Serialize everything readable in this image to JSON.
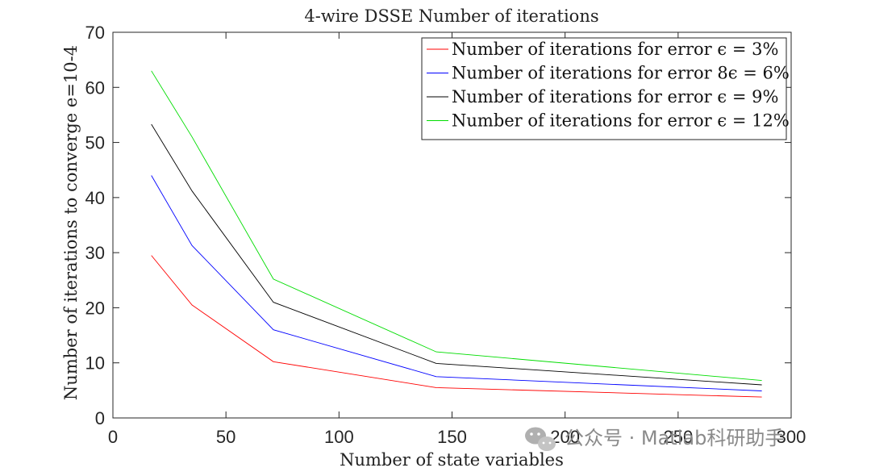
{
  "chart_data": {
    "type": "line",
    "title": "4-wire DSSE Number of iterations",
    "xlabel": "Number of state variables",
    "ylabel": "Number of iterations to converge e=10-4",
    "xlim": [
      0,
      300
    ],
    "ylim": [
      0,
      70
    ],
    "xticks": [
      0,
      50,
      100,
      150,
      200,
      250,
      300
    ],
    "yticks": [
      0,
      10,
      20,
      30,
      40,
      50,
      60,
      70
    ],
    "grid": false,
    "legend_position": "top-right",
    "x": [
      17,
      35,
      71,
      143,
      287
    ],
    "series": [
      {
        "name": "Number of iterations for error ϵ = 3%",
        "color": "#ff0000",
        "values": [
          29.5,
          20.5,
          10.2,
          5.5,
          3.8
        ]
      },
      {
        "name": "Number of iterations for error 8ϵ = 6%",
        "color": "#0000ff",
        "values": [
          44,
          31.3,
          16,
          7.5,
          4.9
        ]
      },
      {
        "name": "Number of iterations for error ϵ = 9%",
        "color": "#000000",
        "values": [
          53.3,
          41.2,
          21,
          9.9,
          6
        ]
      },
      {
        "name": "Number of iterations for error ϵ = 12%",
        "color": "#00dd00",
        "values": [
          63,
          51,
          25.2,
          12,
          6.8
        ]
      }
    ]
  },
  "watermark": {
    "icon": "wechat-icon",
    "text": "公众号 · Matlab科研助手"
  }
}
